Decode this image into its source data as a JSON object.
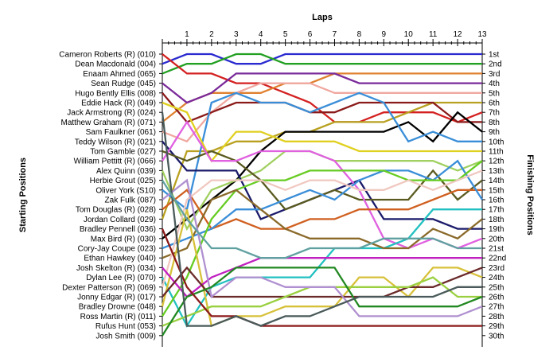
{
  "chart_data": {
    "type": "line",
    "title": "Laps",
    "ylabel_left": "Starting Positions",
    "ylabel_right": "Finishing Positions",
    "x": [
      0,
      1,
      2,
      3,
      4,
      5,
      6,
      7,
      8,
      9,
      10,
      11,
      12,
      13
    ],
    "xticks": [
      "1",
      "2",
      "3",
      "4",
      "5",
      "6",
      "7",
      "8",
      "9",
      "10",
      "11",
      "12",
      "13"
    ],
    "ylim": [
      1,
      30
    ],
    "grid": false,
    "starting_labels": [
      "Cameron Roberts (R) (010)",
      "Dean Macdonald (004)",
      "Enaam Ahmed (065)",
      "Sean Rudge (045)",
      "Hugo Bently Ellis (008)",
      "Eddie Hack (R) (049)",
      "Jack Armstrong (R) (024)",
      "Matthew Graham (R) (071)",
      "Sam Faulkner (061)",
      "Teddy Wilson (R) (021)",
      "Tom Gamble (027)",
      "William Pettitt (R) (066)",
      "Alex Quinn (039)",
      "Herbie Grout (025)",
      "Oliver York (S10)",
      "Zak Fulk (087)",
      "Tom Douglas  (R) (028)",
      "Jordan Collard (029)",
      "Bradley Pennell (036)",
      "Max Bird    (R) (030)",
      "Cory-Jay Coupe (023)",
      "Ethan Hawkey (040)",
      "Josh Skelton (R) (034)",
      "Dylan Lee (R) (070)",
      "Dexter Patterson (R) (069)",
      "Jonny Edgar (R) (017)",
      "Bradley Drowne (048)",
      "Ross Martin (R) (011)",
      "Rufus Hunt (053)",
      "Josh Smith (009)"
    ],
    "finishing_labels": [
      "1st",
      "2nd",
      "3rd",
      "4th",
      "5th",
      "6th",
      "7th",
      "8th",
      "9th",
      "10th",
      "11th",
      "12th",
      "13th",
      "14th",
      "15th",
      "16th",
      "17th",
      "18th",
      "19th",
      "20th",
      "21st",
      "22nd",
      "23rd",
      "24th",
      "25th",
      "26th",
      "27th",
      "28th",
      "29th",
      "30th"
    ],
    "series": [
      {
        "color": "#2a2ad0",
        "values": [
          2,
          1,
          1,
          2,
          2,
          1,
          1,
          1,
          1,
          1,
          1,
          1,
          1,
          1
        ]
      },
      {
        "color": "#22a022",
        "values": [
          3,
          2,
          2,
          1,
          1,
          2,
          2,
          2,
          2,
          2,
          2,
          2,
          2,
          2
        ]
      },
      {
        "color": "#d42020",
        "values": [
          1,
          3,
          3,
          4,
          4,
          5,
          6,
          8,
          8,
          7,
          7,
          7,
          8,
          7
        ]
      },
      {
        "color": "#e08030",
        "values": [
          8,
          6,
          5,
          5,
          5,
          4,
          4,
          3,
          3,
          3,
          3,
          3,
          3,
          3
        ]
      },
      {
        "color": "#7a2a9a",
        "values": [
          4,
          6,
          5,
          3,
          3,
          3,
          3,
          3,
          4,
          4,
          4,
          4,
          4,
          4
        ]
      },
      {
        "color": "#f0a8a0",
        "values": [
          9,
          10,
          7,
          5,
          4,
          4,
          4,
          5,
          5,
          5,
          5,
          5,
          5,
          5
        ]
      },
      {
        "color": "#b8a020",
        "values": [
          18,
          11,
          11,
          10,
          10,
          9,
          9,
          8,
          8,
          8,
          7,
          6,
          6,
          6
        ]
      },
      {
        "color": "#8b1a1a",
        "values": [
          5,
          8,
          7,
          6,
          6,
          6,
          7,
          7,
          6,
          6,
          6,
          6,
          8,
          8
        ]
      },
      {
        "color": "#000000",
        "values": [
          20,
          18,
          16,
          14,
          11,
          9,
          9,
          9,
          9,
          9,
          8,
          10,
          7,
          9
        ]
      },
      {
        "color": "#3a8ed8",
        "values": [
          15,
          17,
          6,
          5,
          6,
          6,
          7,
          6,
          5,
          6,
          10,
          9,
          10,
          10
        ]
      },
      {
        "color": "#e0d020",
        "values": [
          6,
          7,
          12,
          9,
          9,
          10,
          10,
          10,
          11,
          11,
          11,
          11,
          11,
          11
        ]
      },
      {
        "color": "#a0d060",
        "values": [
          13,
          19,
          15,
          14,
          13,
          11,
          11,
          12,
          12,
          12,
          12,
          12,
          13,
          12
        ]
      },
      {
        "color": "#1a1a6a",
        "values": [
          10,
          13,
          13,
          13,
          18,
          17,
          16,
          15,
          14,
          18,
          18,
          18,
          19,
          19
        ]
      },
      {
        "color": "#5a5a20",
        "values": [
          11,
          12,
          11,
          12,
          14,
          17,
          16,
          15,
          16,
          16,
          16,
          13,
          16,
          14
        ]
      },
      {
        "color": "#e060e0",
        "values": [
          12,
          8,
          12,
          12,
          11,
          11,
          11,
          12,
          15,
          20,
          21,
          20,
          21,
          20
        ]
      },
      {
        "color": "#d06020",
        "values": [
          17,
          15,
          19,
          18,
          19,
          19,
          18,
          18,
          17,
          17,
          17,
          16,
          15,
          15
        ]
      },
      {
        "color": "#3a8ed8",
        "values": [
          21,
          20,
          19,
          17,
          17,
          16,
          15,
          16,
          14,
          13,
          13,
          14,
          12,
          16
        ]
      },
      {
        "color": "#22c0c0",
        "values": [
          24,
          29,
          25,
          24,
          24,
          24,
          24,
          21,
          21,
          21,
          20,
          17,
          17,
          17
        ]
      },
      {
        "color": "#66cc22",
        "values": [
          28,
          24,
          18,
          15,
          14,
          14,
          13,
          13,
          13,
          13,
          14,
          14,
          14,
          12
        ]
      },
      {
        "color": "#8a6a2a",
        "values": [
          22,
          21,
          16,
          15,
          17,
          19,
          20,
          20,
          20,
          21,
          21,
          19,
          20,
          18
        ]
      },
      {
        "color": "#f0c8c0",
        "values": [
          25,
          16,
          14,
          14,
          14,
          15,
          14,
          14,
          15,
          15,
          14,
          15,
          14,
          13
        ]
      },
      {
        "color": "#d7c13a",
        "values": [
          27,
          17,
          29,
          28,
          28,
          27,
          27,
          27,
          24,
          24,
          26,
          23,
          23,
          24
        ]
      },
      {
        "color": "#c020c0",
        "values": [
          23,
          26,
          24,
          23,
          22,
          22,
          22,
          22,
          22,
          22,
          22,
          22,
          22,
          22
        ]
      },
      {
        "color": "#6b2a2a",
        "values": [
          26,
          23,
          26,
          26,
          26,
          26,
          26,
          26,
          26,
          26,
          25,
          25,
          24,
          23
        ]
      },
      {
        "color": "#9ad040",
        "values": [
          29,
          28,
          27,
          27,
          27,
          26,
          25,
          25,
          25,
          25,
          25,
          24,
          26,
          26
        ]
      },
      {
        "color": "#b090d0",
        "values": [
          16,
          14,
          26,
          24,
          24,
          25,
          25,
          25,
          28,
          28,
          28,
          28,
          28,
          27
        ]
      },
      {
        "color": "#228822",
        "values": [
          30,
          26,
          25,
          23,
          23,
          23,
          23,
          23,
          27,
          27,
          27,
          27,
          27,
          26
        ]
      },
      {
        "color": "#8b1a1a",
        "values": [
          19,
          25,
          28,
          28,
          29,
          29,
          29,
          29,
          29,
          29,
          29,
          29,
          29,
          29
        ]
      },
      {
        "color": "#4a5a5a",
        "values": [
          7,
          29,
          29,
          28,
          29,
          28,
          28,
          27,
          26,
          26,
          26,
          26,
          25,
          25
        ]
      },
      {
        "color": "#60a0a0",
        "values": [
          14,
          18,
          21,
          21,
          22,
          22,
          21,
          21,
          21,
          20,
          20,
          20,
          21,
          21
        ]
      }
    ]
  }
}
